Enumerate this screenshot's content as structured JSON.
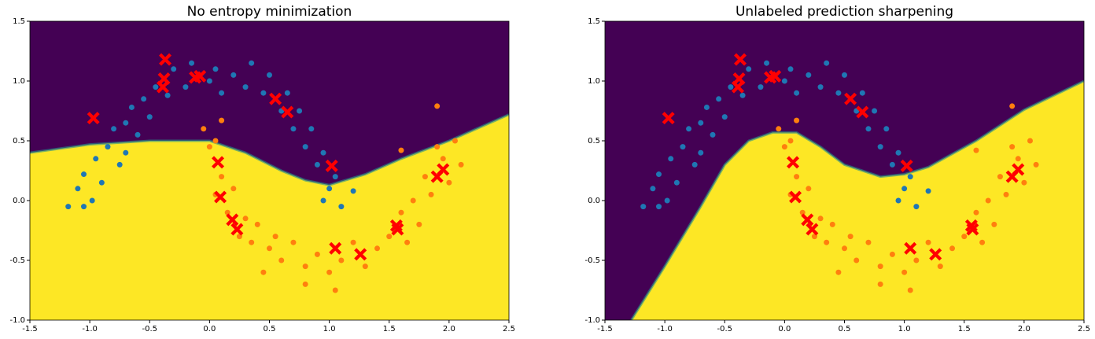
{
  "chart_data": [
    {
      "type": "scatter",
      "title": "No entropy minimization",
      "xlim": [
        -1.5,
        2.5
      ],
      "ylim": [
        -1.0,
        1.5
      ],
      "xticks": [
        -1.5,
        {
          "value": -1.0,
          "label": "-1.0"
        },
        -0.5,
        {
          "value": 0.0,
          "label": "0.0"
        },
        0.5,
        {
          "value": 1.0,
          "label": "1.0"
        },
        1.5,
        {
          "value": 2.0,
          "label": "2.0"
        },
        2.5
      ],
      "yticks": [
        {
          "value": -1.0,
          "label": "-1.0"
        },
        -0.5,
        {
          "value": 0.0,
          "label": "0.0"
        },
        0.5,
        {
          "value": 1.0,
          "label": "1.0"
        },
        1.5
      ],
      "region_colors": [
        "#440154",
        "#fde725"
      ],
      "decision_boundary": {
        "x": [
          -1.5,
          -1.0,
          -0.5,
          0.0,
          0.3,
          0.6,
          0.8,
          1.0,
          1.3,
          1.6,
          2.0,
          2.5
        ],
        "y": [
          0.4,
          0.47,
          0.5,
          0.5,
          0.4,
          0.25,
          0.17,
          0.13,
          0.22,
          0.35,
          0.5,
          0.72
        ]
      },
      "series": [
        {
          "color": "#1f77b4",
          "marker": "o",
          "x": [
            -1.18,
            -1.1,
            -1.05,
            -0.98,
            -0.95,
            -0.9,
            -0.85,
            -0.8,
            -0.75,
            -0.7,
            -0.65,
            -0.6,
            -0.55,
            -0.5,
            -0.45,
            -0.35,
            -0.3,
            -0.2,
            -0.15,
            0.0,
            0.05,
            0.1,
            0.2,
            0.3,
            0.35,
            0.45,
            0.5,
            0.6,
            0.65,
            0.7,
            0.75,
            0.8,
            0.85,
            0.9,
            0.95,
            1.0,
            1.05,
            0.95,
            1.1,
            1.2,
            -1.05,
            -0.7
          ],
          "values": [
            -0.05,
            0.1,
            0.22,
            0.0,
            0.35,
            0.15,
            0.45,
            0.6,
            0.3,
            0.65,
            0.78,
            0.55,
            0.85,
            0.7,
            0.95,
            0.88,
            1.1,
            0.95,
            1.15,
            1.0,
            1.1,
            0.9,
            1.05,
            0.95,
            1.15,
            0.9,
            1.05,
            0.75,
            0.9,
            0.6,
            0.75,
            0.45,
            0.6,
            0.3,
            0.4,
            0.1,
            0.2,
            0.0,
            -0.05,
            0.08,
            -0.05,
            0.4
          ]
        },
        {
          "color": "#ff7f0e",
          "marker": "o",
          "x": [
            0.0,
            0.05,
            0.1,
            0.05,
            0.15,
            0.2,
            0.25,
            0.3,
            0.35,
            0.4,
            0.5,
            0.55,
            0.6,
            0.7,
            0.8,
            0.9,
            1.0,
            1.05,
            1.1,
            1.2,
            1.3,
            1.4,
            1.5,
            1.6,
            1.65,
            1.7,
            1.75,
            1.8,
            1.85,
            1.9,
            1.95,
            2.0,
            2.05,
            2.1,
            1.6,
            1.9,
            -0.05,
            0.1,
            0.8,
            0.45
          ],
          "values": [
            0.45,
            0.5,
            0.2,
            0.05,
            -0.1,
            0.1,
            -0.3,
            -0.15,
            -0.35,
            -0.2,
            -0.4,
            -0.3,
            -0.5,
            -0.35,
            -0.55,
            -0.45,
            -0.6,
            -0.75,
            -0.5,
            -0.35,
            -0.55,
            -0.4,
            -0.3,
            -0.1,
            -0.35,
            0.0,
            -0.2,
            0.2,
            0.05,
            0.45,
            0.35,
            0.15,
            0.5,
            0.3,
            0.42,
            0.79,
            0.6,
            0.67,
            -0.7,
            -0.6
          ]
        },
        {
          "color": "#ff0000",
          "marker": "X",
          "x": [
            -0.97,
            -0.37,
            -0.38,
            -0.39,
            -0.12,
            -0.08,
            0.55,
            0.65,
            1.02,
            0.07,
            0.09,
            0.19,
            0.23,
            1.05,
            1.26,
            1.56,
            1.57,
            1.9,
            1.95
          ],
          "values": [
            0.69,
            1.18,
            1.02,
            0.95,
            1.03,
            1.04,
            0.85,
            0.74,
            0.29,
            0.32,
            0.03,
            -0.16,
            -0.24,
            -0.4,
            -0.45,
            -0.21,
            -0.24,
            0.2,
            0.26
          ]
        }
      ]
    },
    {
      "type": "scatter",
      "title": "Unlabeled prediction sharpening",
      "xlim": [
        -1.5,
        2.5
      ],
      "ylim": [
        -1.0,
        1.5
      ],
      "xticks": [
        -1.5,
        {
          "value": -1.0,
          "label": "-1.0"
        },
        -0.5,
        {
          "value": 0.0,
          "label": "0.0"
        },
        0.5,
        {
          "value": 1.0,
          "label": "1.0"
        },
        1.5,
        {
          "value": 2.0,
          "label": "2.0"
        },
        2.5
      ],
      "yticks": [
        {
          "value": -1.0,
          "label": "-1.0"
        },
        -0.5,
        {
          "value": 0.0,
          "label": "0.0"
        },
        0.5,
        {
          "value": 1.0,
          "label": "1.0"
        },
        1.5
      ],
      "region_colors": [
        "#440154",
        "#fde725"
      ],
      "decision_boundary": {
        "x": [
          -1.28,
          -1.0,
          -0.7,
          -0.5,
          -0.3,
          -0.1,
          0.1,
          0.3,
          0.5,
          0.8,
          1.0,
          1.2,
          1.6,
          2.0,
          2.5
        ],
        "y": [
          -1.0,
          -0.55,
          -0.05,
          0.3,
          0.5,
          0.57,
          0.57,
          0.45,
          0.3,
          0.2,
          0.22,
          0.28,
          0.5,
          0.76,
          1.0
        ]
      },
      "series": [
        {
          "color": "#1f77b4",
          "marker": "o",
          "x": [
            -1.18,
            -1.1,
            -1.05,
            -0.98,
            -0.95,
            -0.9,
            -0.85,
            -0.8,
            -0.75,
            -0.7,
            -0.65,
            -0.6,
            -0.55,
            -0.5,
            -0.45,
            -0.35,
            -0.3,
            -0.2,
            -0.15,
            0.0,
            0.05,
            0.1,
            0.2,
            0.3,
            0.35,
            0.45,
            0.5,
            0.6,
            0.65,
            0.7,
            0.75,
            0.8,
            0.85,
            0.9,
            0.95,
            1.0,
            1.05,
            0.95,
            1.1,
            1.2,
            -1.05,
            -0.7
          ],
          "values": [
            -0.05,
            0.1,
            0.22,
            0.0,
            0.35,
            0.15,
            0.45,
            0.6,
            0.3,
            0.65,
            0.78,
            0.55,
            0.85,
            0.7,
            0.95,
            0.88,
            1.1,
            0.95,
            1.15,
            1.0,
            1.1,
            0.9,
            1.05,
            0.95,
            1.15,
            0.9,
            1.05,
            0.75,
            0.9,
            0.6,
            0.75,
            0.45,
            0.6,
            0.3,
            0.4,
            0.1,
            0.2,
            0.0,
            -0.05,
            0.08,
            -0.05,
            0.4
          ]
        },
        {
          "color": "#ff7f0e",
          "marker": "o",
          "x": [
            0.0,
            0.05,
            0.1,
            0.05,
            0.15,
            0.2,
            0.25,
            0.3,
            0.35,
            0.4,
            0.5,
            0.55,
            0.6,
            0.7,
            0.8,
            0.9,
            1.0,
            1.05,
            1.1,
            1.2,
            1.3,
            1.4,
            1.5,
            1.6,
            1.65,
            1.7,
            1.75,
            1.8,
            1.85,
            1.9,
            1.95,
            2.0,
            2.05,
            2.1,
            1.6,
            1.9,
            -0.05,
            0.1,
            0.8,
            0.45
          ],
          "values": [
            0.45,
            0.5,
            0.2,
            0.05,
            -0.1,
            0.1,
            -0.3,
            -0.15,
            -0.35,
            -0.2,
            -0.4,
            -0.3,
            -0.5,
            -0.35,
            -0.55,
            -0.45,
            -0.6,
            -0.75,
            -0.5,
            -0.35,
            -0.55,
            -0.4,
            -0.3,
            -0.1,
            -0.35,
            0.0,
            -0.2,
            0.2,
            0.05,
            0.45,
            0.35,
            0.15,
            0.5,
            0.3,
            0.42,
            0.79,
            0.6,
            0.67,
            -0.7,
            -0.6
          ]
        },
        {
          "color": "#ff0000",
          "marker": "X",
          "x": [
            -0.97,
            -0.37,
            -0.38,
            -0.39,
            -0.12,
            -0.08,
            0.55,
            0.65,
            1.02,
            0.07,
            0.09,
            0.19,
            0.23,
            1.05,
            1.26,
            1.56,
            1.57,
            1.9,
            1.95
          ],
          "values": [
            0.69,
            1.18,
            1.02,
            0.95,
            1.03,
            1.04,
            0.85,
            0.74,
            0.29,
            0.32,
            0.03,
            -0.16,
            -0.24,
            -0.4,
            -0.45,
            -0.21,
            -0.24,
            0.2,
            0.26
          ]
        }
      ]
    }
  ]
}
